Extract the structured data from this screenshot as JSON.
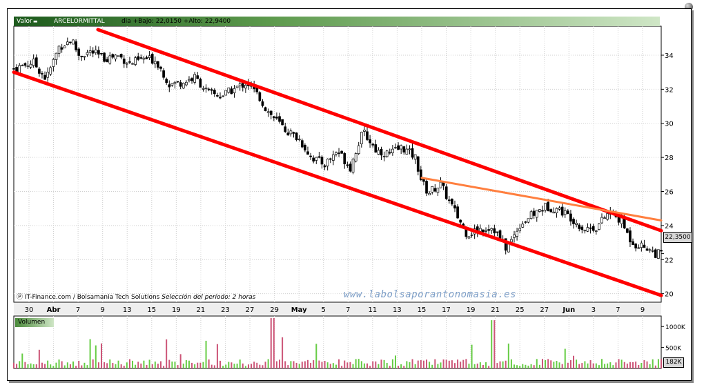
{
  "header": {
    "label": "Valor",
    "symbol": "ARCELORMITTAL",
    "info": "dia +Bajo: 22,0150 +Alto: 22,9400"
  },
  "last_price": "22,3500",
  "credit": {
    "source": "IT-Finance.com / Bolsamania Tech Solutions",
    "period": "Selección del período: 2 horas"
  },
  "watermark": "www.labolsaporantonomasia.es",
  "volume": {
    "title": "Volumen",
    "ticks": [
      "1000K",
      "500K"
    ],
    "last": "182K"
  },
  "colors": {
    "channel": "#ff0000",
    "trend": "#ff7f3f",
    "candle_up": "#ffffff",
    "candle_down": "#000000",
    "volume_up": "#66cc44",
    "volume_down": "#cc5577",
    "grid": "#d0d0d0"
  },
  "chart_data": {
    "type": "candlestick",
    "y_ticks": [
      20,
      22,
      24,
      26,
      28,
      30,
      32,
      34
    ],
    "ylim": [
      19.5,
      35.7
    ],
    "x_tick_labels": [
      "30",
      "Abr",
      "7",
      "9",
      "13",
      "15",
      "19",
      "21",
      "23",
      "27",
      "29",
      "May",
      "5",
      "7",
      "11",
      "13",
      "15",
      "17",
      "19",
      "21",
      "25",
      "27",
      "Jun",
      "3",
      "7",
      "9"
    ],
    "bold_tick_labels": [
      "Abr",
      "May",
      "Jun"
    ],
    "grid": true,
    "close_path": [
      [
        0,
        33.2
      ],
      [
        3,
        33.6
      ],
      [
        5,
        32.6
      ],
      [
        7,
        34.5
      ],
      [
        9,
        34.9
      ],
      [
        10,
        34.0
      ],
      [
        12,
        34.2
      ],
      [
        14,
        33.8
      ],
      [
        16,
        34.0
      ],
      [
        18,
        33.5
      ],
      [
        20,
        33.8
      ],
      [
        22,
        33.7
      ],
      [
        24,
        32.3
      ],
      [
        26,
        32.4
      ],
      [
        28,
        32.7
      ],
      [
        30,
        31.8
      ],
      [
        32,
        31.6
      ],
      [
        34,
        32.0
      ],
      [
        36,
        32.4
      ],
      [
        38,
        31.5
      ],
      [
        39,
        30.8
      ],
      [
        40,
        30.4
      ],
      [
        42,
        29.6
      ],
      [
        44,
        29.1
      ],
      [
        46,
        28.0
      ],
      [
        48,
        27.6
      ],
      [
        50,
        28.4
      ],
      [
        52,
        27.4
      ],
      [
        53,
        28.6
      ],
      [
        54,
        29.5
      ],
      [
        56,
        28.4
      ],
      [
        58,
        28.2
      ],
      [
        60,
        28.6
      ],
      [
        62,
        28.0
      ],
      [
        63,
        26.6
      ],
      [
        64,
        25.9
      ],
      [
        65,
        26.2
      ],
      [
        66,
        26.4
      ],
      [
        67,
        25.6
      ],
      [
        68,
        24.9
      ],
      [
        70,
        23.5
      ],
      [
        72,
        23.8
      ],
      [
        74,
        23.9
      ],
      [
        76,
        22.7
      ],
      [
        77,
        23.2
      ],
      [
        78,
        24.0
      ],
      [
        80,
        24.6
      ],
      [
        82,
        25.1
      ],
      [
        84,
        25.0
      ],
      [
        86,
        24.5
      ],
      [
        88,
        23.8
      ],
      [
        90,
        23.9
      ],
      [
        92,
        24.8
      ],
      [
        94,
        24.2
      ],
      [
        95,
        23.3
      ],
      [
        96,
        22.9
      ],
      [
        98,
        22.7
      ],
      [
        99,
        22.35
      ]
    ],
    "volume_range_k": [
      0,
      1250
    ],
    "series": [
      {
        "name": "upper channel",
        "points": [
          [
            13,
            35.5
          ],
          [
            100,
            23.7
          ]
        ]
      },
      {
        "name": "lower channel",
        "points": [
          [
            0,
            33.0
          ],
          [
            100,
            19.9
          ]
        ]
      },
      {
        "name": "resistance",
        "points": [
          [
            63,
            26.8
          ],
          [
            100,
            24.3
          ]
        ]
      }
    ]
  }
}
